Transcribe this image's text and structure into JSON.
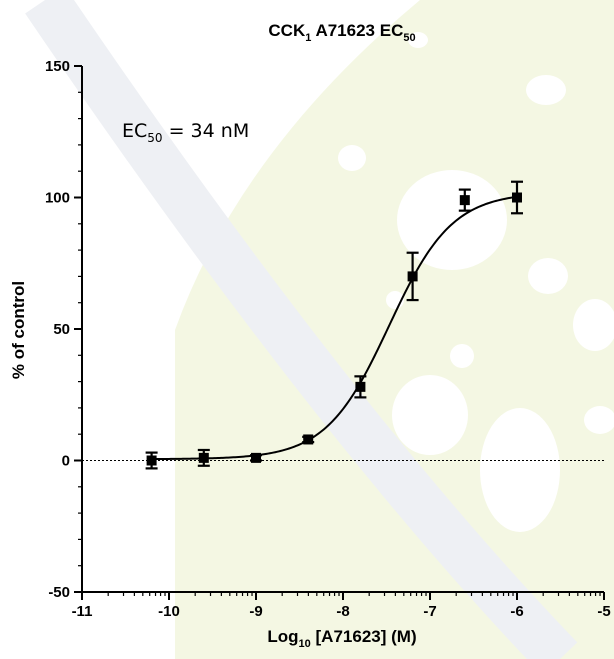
{
  "chart_data": {
    "type": "scatter",
    "title": {
      "main": "CCK",
      "sub1": "1",
      "mid": " A71623 EC",
      "sub2": "50"
    },
    "xlabel": {
      "pre": "Log",
      "sub": "10",
      "post": " [A71623] (M)"
    },
    "ylabel": "% of control",
    "xlim": [
      -11,
      -5
    ],
    "ylim": [
      -50,
      150
    ],
    "x_ticks": [
      "-11",
      "-10",
      "-9",
      "-8",
      "-7",
      "-6",
      "-5"
    ],
    "y_ticks": [
      "-50",
      "0",
      "50",
      "100",
      "150"
    ],
    "annotation": {
      "pre": "EC",
      "sub": "50",
      "post": " = 34 nM"
    },
    "series": [
      {
        "x": [
          -10.2,
          -9.6,
          -9.0,
          -8.4,
          -7.8,
          -7.2,
          -6.6,
          -6.0
        ],
        "y": [
          0,
          1,
          1,
          8,
          28,
          70,
          99,
          100
        ],
        "err": [
          3,
          3,
          1,
          1,
          4,
          9,
          4,
          6
        ]
      }
    ],
    "fit": {
      "bottom": 0.5,
      "top": 102,
      "log_ec50": -7.47,
      "hill": 1.2
    },
    "reference_line_y": 0,
    "grid": false
  }
}
